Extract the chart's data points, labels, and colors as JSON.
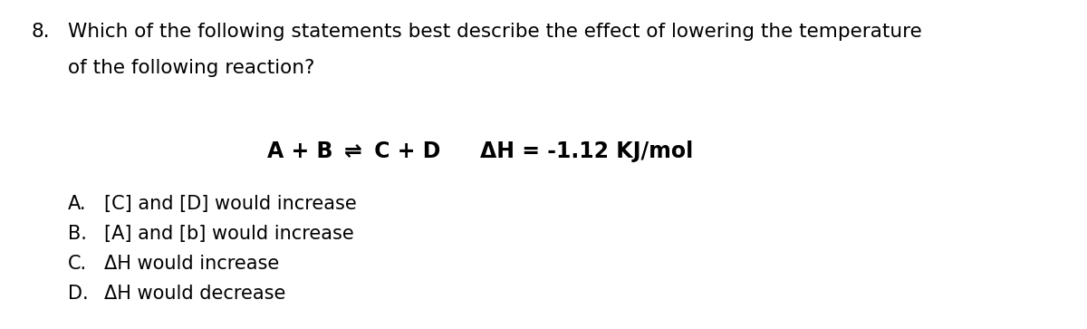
{
  "background_color": "#ffffff",
  "question_number": "8.",
  "question_line1": "Which of the following statements best describe the effect of lowering the temperature",
  "question_line2": "of the following reaction?",
  "eq_left": "A + B ",
  "eq_arrow": "⇌",
  "eq_right": " C + D",
  "delta_h": "ΔH = -1.12 KJ/mol",
  "options": [
    [
      "A.",
      "[C] and [D] would increase"
    ],
    [
      "B.",
      "[A] and [b] would increase"
    ],
    [
      "C.",
      "ΔH would increase"
    ],
    [
      "D.",
      "ΔH would decrease"
    ]
  ],
  "font_size_question": 15.5,
  "font_size_equation": 17,
  "font_size_options": 15,
  "text_color": "#000000",
  "font_family": "DejaVu Sans"
}
